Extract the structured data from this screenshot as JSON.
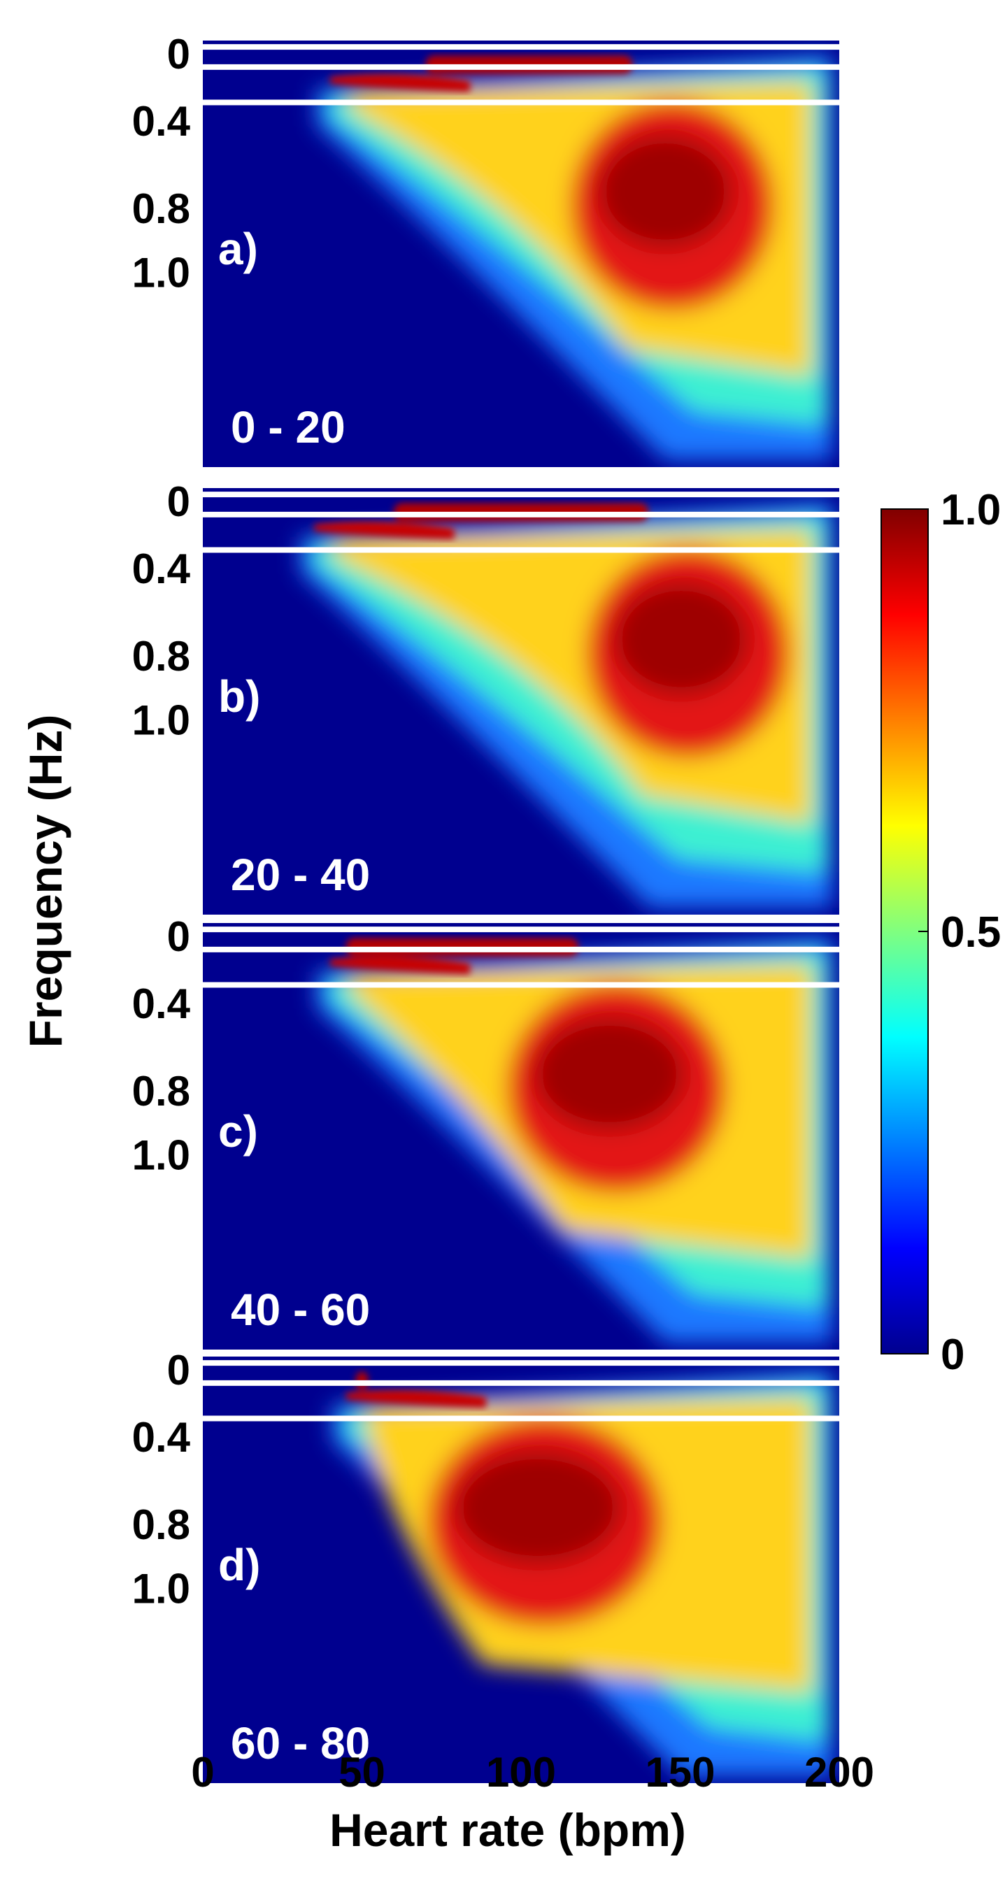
{
  "chart_data": {
    "type": "heatmap",
    "xlabel": "Heart rate (bpm)",
    "ylabel": "Frequency (Hz)",
    "x_ticks": [
      "0",
      "50",
      "100",
      "150",
      "200"
    ],
    "y_ticks": [
      "0",
      "0.4",
      "0.8",
      "1.0"
    ],
    "xlim": [
      0,
      200
    ],
    "colormap": "jet",
    "colorbar": {
      "range": [
        0,
        1
      ],
      "ticks": [
        "0",
        "0.5",
        "1.0"
      ]
    },
    "reference_lines_hz": [
      0.04,
      0.15,
      0.4
    ],
    "panels": [
      {
        "label": "a)",
        "range_label": "0 - 20",
        "hf_start_bpm": 40,
        "vlf_band_bpm": [
          70,
          135
        ],
        "hf_peak_bpm": [
          120,
          175
        ]
      },
      {
        "label": "b)",
        "range_label": "20 - 40",
        "hf_start_bpm": 35,
        "vlf_band_bpm": [
          60,
          140
        ],
        "hf_peak_bpm": [
          125,
          180
        ]
      },
      {
        "label": "c)",
        "range_label": "40 - 60",
        "hf_start_bpm": 40,
        "vlf_band_bpm": [
          45,
          118
        ],
        "hf_peak_bpm": [
          100,
          160
        ]
      },
      {
        "label": "d)",
        "range_label": "60 - 80",
        "hf_start_bpm": 45,
        "vlf_band_bpm": [
          48,
          52
        ],
        "hf_peak_bpm": [
          75,
          140
        ]
      }
    ]
  },
  "colors": {
    "background": "#00008f",
    "reference_line": "#ffffff",
    "label": "#ffffff"
  }
}
